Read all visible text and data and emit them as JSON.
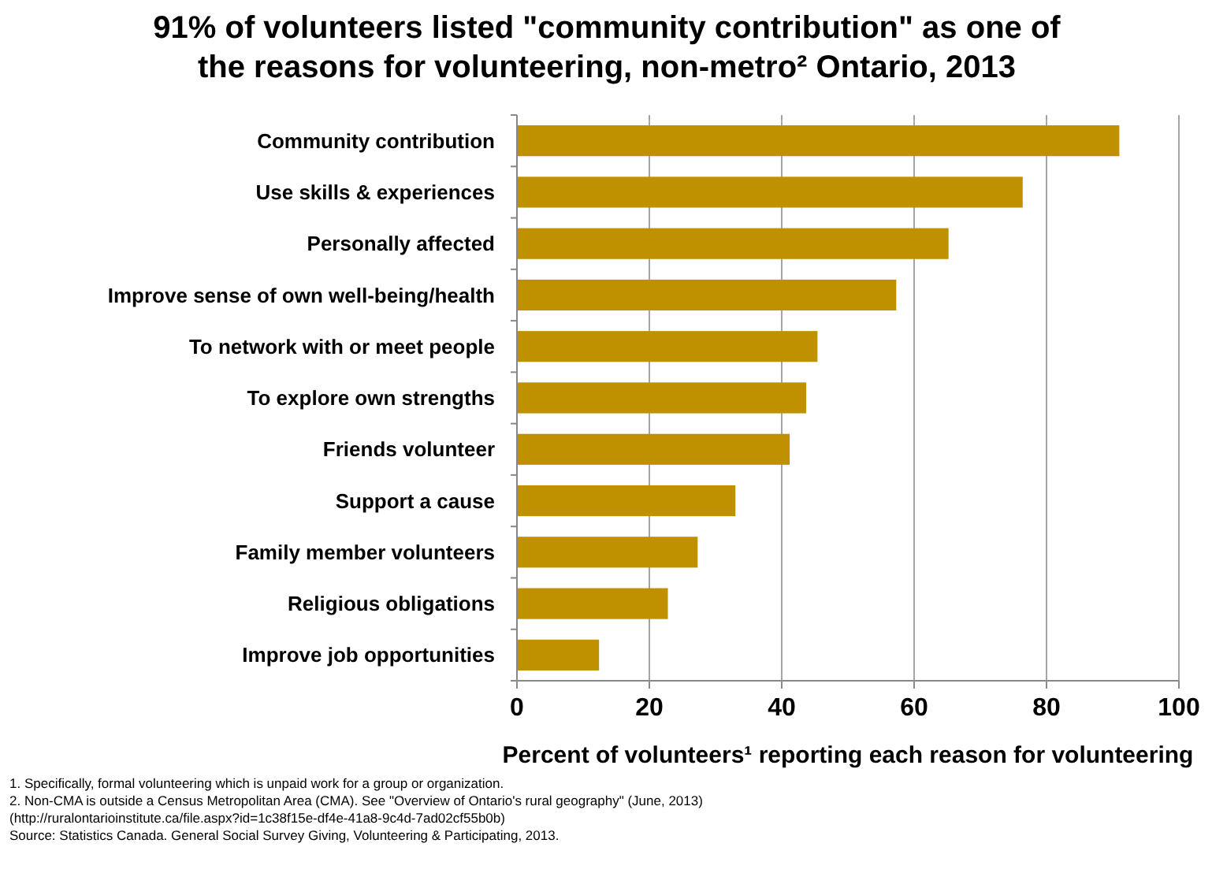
{
  "chart_data": {
    "type": "bar",
    "orientation": "horizontal",
    "title": "91% of volunteers listed \"community contribution\" as one of the reasons for volunteering, non-metro² Ontario, 2013",
    "categories": [
      "Community contribution",
      "Use skills & experiences",
      "Personally affected",
      "Improve sense of own well-being/health",
      "To network with or meet people",
      "To explore own strengths",
      "Friends volunteer",
      "Support a cause",
      "Family member volunteers",
      "Religious obligations",
      "Improve job opportunities"
    ],
    "values": [
      91,
      76.4,
      65.2,
      57.3,
      45.4,
      43.7,
      41.2,
      33,
      27.3,
      22.8,
      12.4
    ],
    "color": "#bf9000",
    "xlim": [
      0,
      100
    ],
    "xticks": [
      0,
      20,
      40,
      60,
      80,
      100
    ],
    "grid": "x",
    "xlabel": "Percent of volunteers¹ reporting each reason for volunteering",
    "annotations": [
      "1. Specifically, formal volunteering which is unpaid work for a group or organization.",
      "2. Non-CMA is outside a Census Metropolitan Area (CMA). See \"Overview of Ontario's rural geography\" (June, 2013)",
      "(http://ruralontarioinstitute.ca/file.aspx?id=1c38f15e-df4e-41a8-9c4d-7ad02cf55b0b)",
      "Source: Statistics Canada. General Social Survey  Giving, Volunteering & Participating, 2013."
    ]
  }
}
